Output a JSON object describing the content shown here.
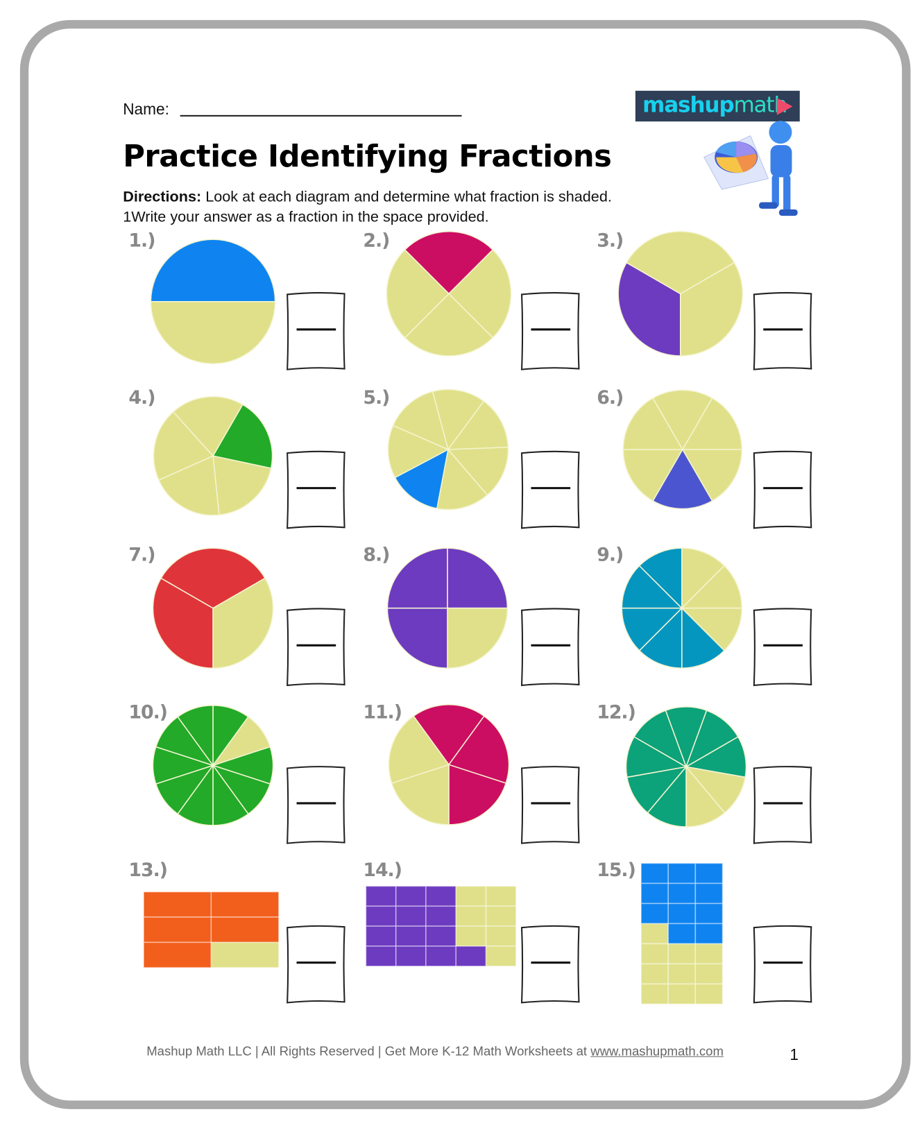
{
  "header": {
    "name_label": "Name:",
    "title": "Practice Identifying Fractions",
    "directions_label": "Directions:",
    "directions_text": " Look at each diagram and determine what fraction is shaded.",
    "directions_line2": "1Write your answer as a fraction in the space provided."
  },
  "logo": {
    "part1": "mashup",
    "part2": "math",
    "icon": "play-triangle-icon"
  },
  "colors": {
    "unshaded": "#e0e08a",
    "label": "#888888",
    "frame": "#a9a9a9"
  },
  "problems": [
    {
      "label": "1.)",
      "type": "circle",
      "parts": 2,
      "shaded": [
        0
      ],
      "color": "#0f84f0"
    },
    {
      "label": "2.)",
      "type": "circle",
      "parts": 4,
      "shaded": [
        0
      ],
      "color": "#cc0e63"
    },
    {
      "label": "3.)",
      "type": "circle",
      "parts": 3,
      "shaded": [
        1
      ],
      "color": "#6d3bc0"
    },
    {
      "label": "4.)",
      "type": "circle",
      "parts": 5,
      "shaded": [
        0
      ],
      "color": "#22aa28"
    },
    {
      "label": "5.)",
      "type": "circle",
      "parts": 7,
      "shaded": [
        4
      ],
      "color": "#0f84f0"
    },
    {
      "label": "6.)",
      "type": "circle",
      "parts": 6,
      "shaded": [
        2
      ],
      "color": "#4c55d0"
    },
    {
      "label": "7.)",
      "type": "circle",
      "parts": 3,
      "shaded": [
        1,
        2
      ],
      "color": "#e0343b"
    },
    {
      "label": "8.)",
      "type": "circle",
      "parts": 4,
      "shaded": [
        0,
        2,
        3
      ],
      "color": "#6d3bc0"
    },
    {
      "label": "9.)",
      "type": "circle",
      "parts": 8,
      "shaded": [
        3,
        4,
        5,
        6,
        7
      ],
      "color": "#0596c0"
    },
    {
      "label": "10.)",
      "type": "circle",
      "parts": 10,
      "shaded": [
        0,
        2,
        3,
        4,
        5,
        6,
        7,
        8,
        9
      ],
      "color": "#22aa28"
    },
    {
      "label": "11.)",
      "type": "circle",
      "parts": 5,
      "shaded": [
        0,
        1,
        2
      ],
      "color": "#cc0e63"
    },
    {
      "label": "12.)",
      "type": "circle",
      "parts": 9,
      "shaded": [
        0,
        1,
        2,
        5,
        6,
        7,
        8
      ],
      "color": "#0ca27a"
    },
    {
      "label": "13.)",
      "type": "grid",
      "cols": 2,
      "rows": 3,
      "unshaded_cells": [
        [
          2,
          1
        ]
      ],
      "color": "#f25e1c"
    },
    {
      "label": "14.)",
      "type": "grid",
      "cols": 5,
      "rows": 4,
      "unshaded_cells": [
        [
          0,
          3
        ],
        [
          0,
          4
        ],
        [
          1,
          3
        ],
        [
          1,
          4
        ],
        [
          2,
          3
        ],
        [
          2,
          4
        ],
        [
          3,
          4
        ]
      ],
      "color": "#6d3bc0"
    },
    {
      "label": "15.)",
      "type": "grid",
      "cols": 3,
      "rows": 7,
      "unshaded_cells": [
        [
          3,
          0
        ],
        [
          4,
          0
        ],
        [
          4,
          1
        ],
        [
          4,
          2
        ],
        [
          5,
          0
        ],
        [
          5,
          1
        ],
        [
          5,
          2
        ],
        [
          6,
          0
        ],
        [
          6,
          1
        ],
        [
          6,
          2
        ]
      ],
      "color": "#0f84f0"
    }
  ],
  "footer": {
    "text": "Mashup Math LLC | All Rights Reserved | Get More K-12 Math Worksheets at ",
    "link": "www.mashupmath.com",
    "page": "1"
  }
}
